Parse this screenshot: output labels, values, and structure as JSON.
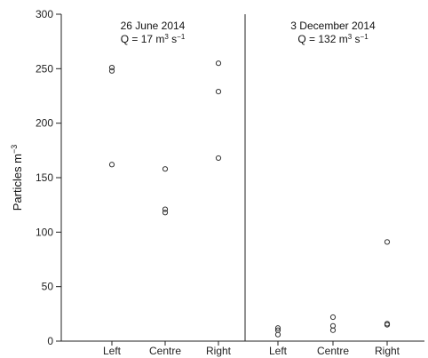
{
  "chart_data": {
    "type": "scatter",
    "ylabel_main": "Particles m",
    "ylabel_exp": "−3",
    "ylim": [
      0,
      300
    ],
    "yticks": [
      0,
      50,
      100,
      150,
      200,
      250,
      300
    ],
    "grid": false,
    "categories": [
      "Left",
      "Centre",
      "Right"
    ],
    "panels": [
      {
        "title_line1": "26 June 2014",
        "q_prefix": "Q = 17 m",
        "q_exp1": "3",
        "q_unit": " s",
        "q_exp2": "−1",
        "x_labels": [
          "Left",
          "Centre",
          "Right"
        ],
        "series": [
          {
            "category": "Left",
            "values": [
              251,
              248,
              162
            ]
          },
          {
            "category": "Centre",
            "values": [
              158,
              121,
              118
            ]
          },
          {
            "category": "Right",
            "values": [
              255,
              229,
              168
            ]
          }
        ]
      },
      {
        "title_line1": "3 December 2014",
        "q_prefix": "Q = 132 m",
        "q_exp1": "3",
        "q_unit": " s",
        "q_exp2": "−1",
        "x_labels": [
          "Left",
          "Centre",
          "Right"
        ],
        "series": [
          {
            "category": "Left",
            "values": [
              12,
              10,
              6
            ]
          },
          {
            "category": "Centre",
            "values": [
              22,
              14,
              10
            ]
          },
          {
            "category": "Right",
            "values": [
              91,
              16,
              15
            ]
          }
        ]
      }
    ]
  }
}
